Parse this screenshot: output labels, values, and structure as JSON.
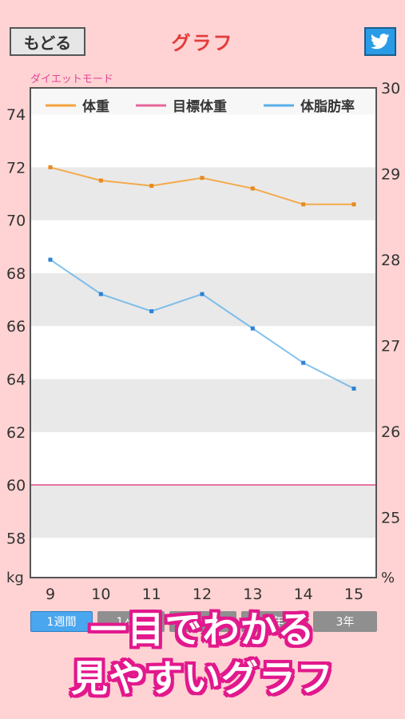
{
  "header": {
    "back_label": "もどる",
    "title": "グラフ",
    "share_icon": "twitter-bird-icon"
  },
  "mode_label": "ダイエットモード",
  "range_tabs": [
    "1週間",
    "1ヶ月",
    "3ヶ月",
    "1年",
    "3年"
  ],
  "promo": {
    "line1": "一目でわかる",
    "line2": "見やすいグラフ"
  },
  "colors": {
    "weight": "#f4a33b",
    "target": "#e8649a",
    "body_fat": "#5aaee8",
    "accent_title": "#e33b3b",
    "mode_label": "#e2469a"
  },
  "chart_data": {
    "type": "line",
    "x": [
      9,
      10,
      11,
      12,
      13,
      14,
      15
    ],
    "left_axis": {
      "unit": "kg",
      "ticks": [
        58,
        60,
        62,
        64,
        66,
        68,
        70,
        72,
        74
      ],
      "range": [
        56.5,
        75
      ]
    },
    "right_axis": {
      "unit": "%",
      "ticks": [
        25,
        26,
        27,
        28,
        29,
        30
      ],
      "range": [
        24.3,
        30
      ]
    },
    "series": [
      {
        "name": "体重",
        "axis": "left",
        "color": "#f4a33b",
        "values": [
          72.0,
          71.5,
          71.3,
          71.6,
          71.2,
          70.6,
          70.6
        ]
      },
      {
        "name": "目標体重",
        "axis": "left",
        "color": "#e8649a",
        "values": [
          60,
          60,
          60,
          60,
          60,
          60,
          60
        ],
        "marker": false
      },
      {
        "name": "体脂肪率",
        "axis": "right",
        "color": "#5aaee8",
        "values": [
          28.0,
          27.6,
          27.4,
          27.6,
          27.2,
          26.8,
          26.5
        ]
      }
    ],
    "legend": "top",
    "grid": "horizontal bands"
  }
}
